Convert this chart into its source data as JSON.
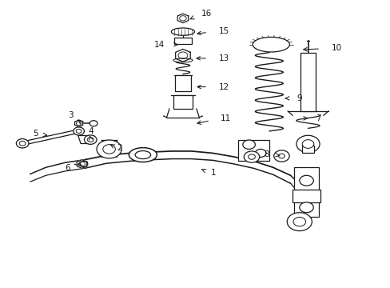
{
  "bg_color": "#ffffff",
  "line_color": "#1a1a1a",
  "figsize": [
    4.89,
    3.6
  ],
  "dpi": 100,
  "callouts": {
    "16": {
      "lpos": [
        0.515,
        0.955
      ],
      "tpos": [
        0.48,
        0.933
      ],
      "ha": "left"
    },
    "15": {
      "lpos": [
        0.56,
        0.895
      ],
      "tpos": [
        0.497,
        0.885
      ],
      "ha": "left"
    },
    "14": {
      "lpos": [
        0.42,
        0.848
      ],
      "tpos": [
        0.462,
        0.848
      ],
      "ha": "right"
    },
    "13": {
      "lpos": [
        0.56,
        0.8
      ],
      "tpos": [
        0.495,
        0.8
      ],
      "ha": "left"
    },
    "12": {
      "lpos": [
        0.56,
        0.7
      ],
      "tpos": [
        0.497,
        0.7
      ],
      "ha": "left"
    },
    "11": {
      "lpos": [
        0.565,
        0.59
      ],
      "tpos": [
        0.497,
        0.57
      ],
      "ha": "left"
    },
    "10": {
      "lpos": [
        0.85,
        0.835
      ],
      "tpos": [
        0.77,
        0.83
      ],
      "ha": "left"
    },
    "9": {
      "lpos": [
        0.76,
        0.66
      ],
      "tpos": [
        0.73,
        0.66
      ],
      "ha": "left"
    },
    "7": {
      "lpos": [
        0.81,
        0.59
      ],
      "tpos": [
        0.79,
        0.59
      ],
      "ha": "left"
    },
    "8": {
      "lpos": [
        0.69,
        0.465
      ],
      "tpos": [
        0.724,
        0.458
      ],
      "ha": "right"
    },
    "1": {
      "lpos": [
        0.54,
        0.398
      ],
      "tpos": [
        0.51,
        0.415
      ],
      "ha": "left"
    },
    "2": {
      "lpos": [
        0.298,
        0.485
      ],
      "tpos": [
        0.28,
        0.5
      ],
      "ha": "left"
    },
    "3": {
      "lpos": [
        0.185,
        0.6
      ],
      "tpos": [
        0.198,
        0.585
      ],
      "ha": "right"
    },
    "4": {
      "lpos": [
        0.225,
        0.545
      ],
      "tpos": [
        0.228,
        0.53
      ],
      "ha": "left"
    },
    "5": {
      "lpos": [
        0.095,
        0.535
      ],
      "tpos": [
        0.12,
        0.53
      ],
      "ha": "right"
    },
    "6": {
      "lpos": [
        0.178,
        0.415
      ],
      "tpos": [
        0.196,
        0.426
      ],
      "ha": "right"
    }
  }
}
